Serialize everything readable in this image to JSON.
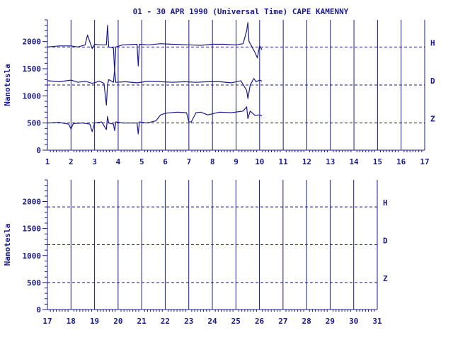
{
  "title": "01 - 30 APR 1990 (Universal Time) CAPE KAMENNY",
  "colors": {
    "ink": "#1a1a8c",
    "background": "#ffffff"
  },
  "chart_data": [
    {
      "type": "line",
      "ylabel": "Nanotesla",
      "xlim": [
        1,
        17
      ],
      "ylim": [
        0,
        2400
      ],
      "x_ticks": [
        "1",
        "2",
        "3",
        "4",
        "5",
        "6",
        "7",
        "8",
        "9",
        "10",
        "11",
        "12",
        "13",
        "14",
        "15",
        "16",
        "17"
      ],
      "y_ticks": [
        "0",
        "500",
        "1000",
        "1500",
        "2000"
      ],
      "baselines": [
        {
          "name": "H",
          "value": 1900
        },
        {
          "name": "D",
          "value": 1200
        },
        {
          "name": "Z",
          "value": 500
        }
      ],
      "series": [
        {
          "name": "H",
          "x": [
            1.0,
            1.5,
            2.0,
            2.3,
            2.6,
            2.7,
            2.9,
            3.0,
            3.2,
            3.5,
            3.55,
            3.6,
            3.8,
            3.85,
            3.9,
            4.2,
            4.8,
            4.85,
            4.9,
            5.3,
            5.8,
            6.3,
            7.0,
            7.5,
            8.0,
            8.5,
            9.0,
            9.3,
            9.45,
            9.5,
            9.55,
            9.6,
            9.8,
            9.9,
            10.0,
            10.1
          ],
          "y": [
            1900,
            1920,
            1920,
            1900,
            1940,
            2120,
            1870,
            1950,
            1940,
            1940,
            2300,
            1900,
            1880,
            1450,
            1900,
            1940,
            1950,
            1550,
            1950,
            1940,
            1960,
            1950,
            1940,
            1930,
            1950,
            1950,
            1940,
            1960,
            2200,
            2350,
            2000,
            1960,
            1800,
            1700,
            1920,
            1850
          ]
        },
        {
          "name": "D",
          "x": [
            1.0,
            1.5,
            2.0,
            2.3,
            2.6,
            2.9,
            3.2,
            3.4,
            3.5,
            3.55,
            3.6,
            3.8,
            3.85,
            3.9,
            4.3,
            4.8,
            5.3,
            5.8,
            6.3,
            6.8,
            7.3,
            7.8,
            8.3,
            8.8,
            9.2,
            9.45,
            9.5,
            9.6,
            9.75,
            9.85,
            10.0,
            10.1
          ],
          "y": [
            1280,
            1260,
            1290,
            1250,
            1270,
            1230,
            1270,
            1230,
            830,
            1200,
            1300,
            1250,
            1480,
            1250,
            1260,
            1240,
            1270,
            1260,
            1250,
            1260,
            1250,
            1260,
            1260,
            1240,
            1280,
            1100,
            950,
            1200,
            1320,
            1260,
            1290,
            1270
          ]
        },
        {
          "name": "Z",
          "x": [
            1.0,
            1.5,
            1.9,
            2.0,
            2.1,
            2.5,
            2.8,
            2.9,
            3.0,
            3.3,
            3.5,
            3.55,
            3.6,
            3.8,
            3.85,
            3.9,
            4.2,
            4.8,
            4.85,
            4.9,
            5.2,
            5.6,
            5.8,
            6.0,
            6.5,
            6.9,
            7.0,
            7.1,
            7.3,
            7.5,
            7.8,
            8.3,
            8.8,
            9.3,
            9.45,
            9.5,
            9.6,
            9.8,
            10.0,
            10.1
          ],
          "y": [
            500,
            510,
            480,
            390,
            490,
            500,
            480,
            340,
            500,
            520,
            380,
            620,
            500,
            480,
            360,
            520,
            500,
            500,
            300,
            520,
            500,
            540,
            650,
            680,
            700,
            690,
            520,
            520,
            690,
            700,
            650,
            700,
            690,
            720,
            800,
            580,
            720,
            640,
            650,
            630
          ]
        }
      ]
    },
    {
      "type": "line",
      "ylabel": "Nanotesla",
      "xlim": [
        17,
        31
      ],
      "ylim": [
        0,
        2400
      ],
      "x_ticks": [
        "17",
        "18",
        "19",
        "20",
        "21",
        "22",
        "23",
        "24",
        "25",
        "26",
        "27",
        "28",
        "29",
        "30",
        "31"
      ],
      "y_ticks": [
        "0",
        "500",
        "1000",
        "1500",
        "2000"
      ],
      "baselines": [
        {
          "name": "H",
          "value": 1900
        },
        {
          "name": "D",
          "value": 1200
        },
        {
          "name": "Z",
          "value": 500
        }
      ],
      "series": []
    }
  ]
}
